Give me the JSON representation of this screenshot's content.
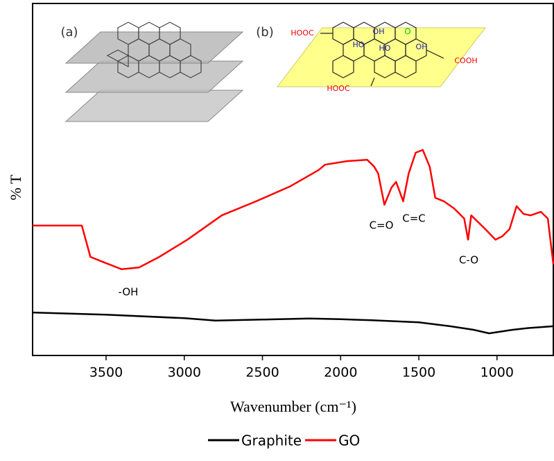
{
  "chart_data": {
    "type": "line",
    "x_label": "Wavenumber (cm⁻¹)",
    "y_label": "% T",
    "xlim": [
      3970,
      640
    ],
    "xticks": [
      3500,
      3000,
      2500,
      2000,
      1500,
      1000
    ],
    "ylim": [
      0,
      100
    ],
    "legend": "bottom",
    "series": [
      {
        "name": "Graphite",
        "color": "#000000",
        "x": [
          3970,
          3500,
          3000,
          2800,
          2500,
          2200,
          2000,
          1800,
          1500,
          1300,
          1150,
          1050,
          900,
          800,
          640
        ],
        "values": [
          12.2,
          11.6,
          10.6,
          9.9,
          10.2,
          10.5,
          10.3,
          10.0,
          9.4,
          8.3,
          7.3,
          6.3,
          7.3,
          7.8,
          8.3
        ]
      },
      {
        "name": "GO",
        "color": "#ff0000",
        "x": [
          3970,
          3655,
          3600,
          3510,
          3400,
          3290,
          3160,
          2980,
          2760,
          2540,
          2320,
          2140,
          2100,
          1960,
          1830,
          1785,
          1760,
          1720,
          1675,
          1645,
          1600,
          1565,
          1520,
          1475,
          1430,
          1395,
          1340,
          1275,
          1210,
          1185,
          1165,
          1075,
          1010,
          965,
          920,
          875,
          830,
          785,
          720,
          675,
          640
        ],
        "values": [
          36.9,
          36.9,
          28.0,
          26.4,
          24.5,
          25.0,
          28.0,
          32.9,
          39.8,
          43.8,
          48.1,
          52.7,
          54.2,
          55.2,
          55.6,
          53.6,
          51.7,
          42.8,
          47.7,
          49.3,
          43.8,
          51.7,
          57.6,
          58.4,
          53.6,
          44.8,
          43.8,
          41.8,
          38.9,
          32.9,
          39.8,
          35.9,
          32.9,
          33.9,
          35.9,
          42.4,
          40.2,
          39.8,
          40.8,
          38.9,
          26.0
        ]
      }
    ],
    "annotations": [
      "-OH",
      "C=O",
      "C=C",
      "C-O"
    ],
    "inset_labels": [
      "(a)",
      "(b)",
      "HOOC",
      "OH",
      "HO",
      "HO",
      "O",
      "OH",
      "COOH",
      "HOOC"
    ]
  }
}
